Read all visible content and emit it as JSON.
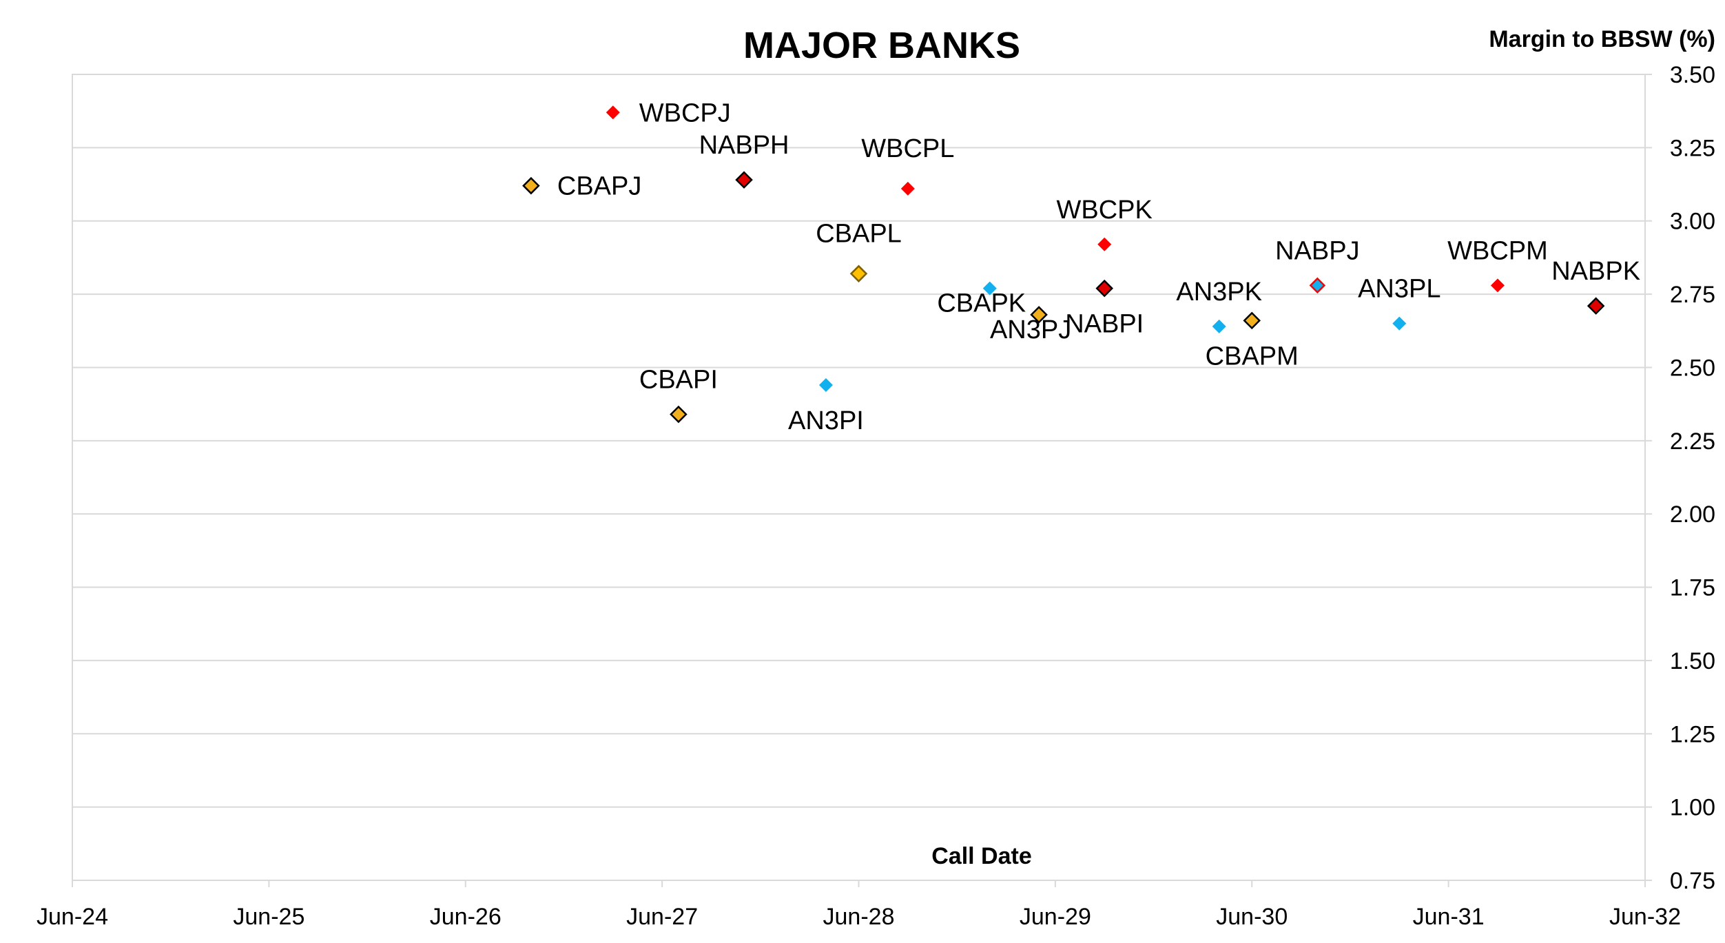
{
  "chart_data": {
    "type": "scatter",
    "title": "MAJOR BANKS",
    "xlabel": "Call Date",
    "ylabel": "Margin to BBSW (%)",
    "xlim": [
      "2024-06",
      "2032-06"
    ],
    "ylim": [
      0.75,
      3.5
    ],
    "yticks": [
      "3.50",
      "3.25",
      "3.00",
      "2.75",
      "2.50",
      "2.25",
      "2.00",
      "1.75",
      "1.50",
      "1.25",
      "1.00",
      "0.75"
    ],
    "xticks": [
      "Jun-24",
      "Jun-25",
      "Jun-26",
      "Jun-27",
      "Jun-28",
      "Jun-29",
      "Jun-30",
      "Jun-31",
      "Jun-32"
    ],
    "y_axis_position": "right",
    "grid": "horizontal",
    "colors": {
      "wbc": "#ff0000",
      "nab": "#e00000",
      "cba": "#f2b01e",
      "cba_hollow": "#ffc000",
      "an3": "#12b0ee",
      "outline": "#000000",
      "grid": "#d9d9d9"
    },
    "points": [
      {
        "label": "WBCPJ",
        "x": "2027-03",
        "y": 3.37,
        "style": "wbc",
        "label_pos": "right"
      },
      {
        "label": "NABPH",
        "x": "2027-11",
        "y": 3.14,
        "style": "nab",
        "label_pos": "above"
      },
      {
        "label": "CBAPJ",
        "x": "2026-10",
        "y": 3.12,
        "style": "cba",
        "label_pos": "right"
      },
      {
        "label": "WBCPL",
        "x": "2028-09",
        "y": 3.11,
        "style": "wbc",
        "label_pos": "above-large"
      },
      {
        "label": "CBAPL",
        "x": "2028-06",
        "y": 2.82,
        "style": "cba_hollow",
        "label_pos": "above-large"
      },
      {
        "label": "WBCPK",
        "x": "2029-09",
        "y": 2.92,
        "style": "wbc",
        "label_pos": "above"
      },
      {
        "label": "CBAPK",
        "x": "2029-02",
        "y": 2.77,
        "style": "an3",
        "label_pos": "below-left"
      },
      {
        "label": "NABPI",
        "x": "2029-09",
        "y": 2.77,
        "style": "nab",
        "label_pos": "below"
      },
      {
        "label": "AN3PJ",
        "x": "2029-05",
        "y": 2.68,
        "style": "cba",
        "label_pos": "below-left"
      },
      {
        "label": "AN3PK",
        "x": "2030-04",
        "y": 2.64,
        "style": "an3",
        "label_pos": "above"
      },
      {
        "label": "CBAPM",
        "x": "2030-06",
        "y": 2.66,
        "style": "cba",
        "label_pos": "below"
      },
      {
        "label": "NABPJ",
        "x": "2030-10",
        "y": 2.78,
        "style": "an3_red",
        "label_pos": "above"
      },
      {
        "label": "AN3PL",
        "x": "2031-03",
        "y": 2.65,
        "style": "an3",
        "label_pos": "above"
      },
      {
        "label": "WBCPM",
        "x": "2031-09",
        "y": 2.78,
        "style": "wbc",
        "label_pos": "above"
      },
      {
        "label": "NABPK",
        "x": "2032-03",
        "y": 2.71,
        "style": "nab",
        "label_pos": "above"
      },
      {
        "label": "CBAPI",
        "x": "2027-07",
        "y": 2.34,
        "style": "cba",
        "label_pos": "above"
      },
      {
        "label": "AN3PI",
        "x": "2028-04",
        "y": 2.44,
        "style": "an3",
        "label_pos": "below"
      }
    ]
  }
}
